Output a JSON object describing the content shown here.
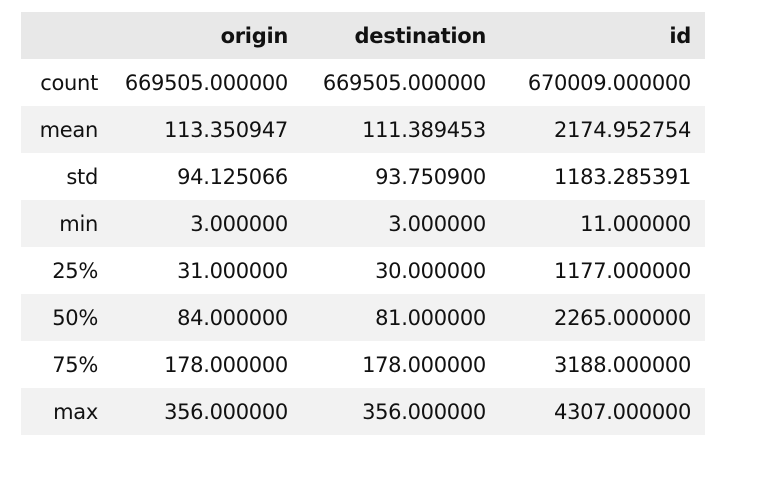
{
  "table": {
    "index_header": "",
    "columns": [
      "origin",
      "destination",
      "id"
    ],
    "rows": [
      {
        "label": "count",
        "values": [
          "669505.000000",
          "669505.000000",
          "670009.000000"
        ]
      },
      {
        "label": "mean",
        "values": [
          "113.350947",
          "111.389453",
          "2174.952754"
        ]
      },
      {
        "label": "std",
        "values": [
          "94.125066",
          "93.750900",
          "1183.285391"
        ]
      },
      {
        "label": "min",
        "values": [
          "3.000000",
          "3.000000",
          "11.000000"
        ]
      },
      {
        "label": "25%",
        "values": [
          "31.000000",
          "30.000000",
          "1177.000000"
        ]
      },
      {
        "label": "50%",
        "values": [
          "84.000000",
          "81.000000",
          "2265.000000"
        ]
      },
      {
        "label": "75%",
        "values": [
          "178.000000",
          "178.000000",
          "3188.000000"
        ]
      },
      {
        "label": "max",
        "values": [
          "356.000000",
          "356.000000",
          "4307.000000"
        ]
      }
    ]
  },
  "colors": {
    "header_bg": "#e8e8e8",
    "stripe_bg": "#f2f2f2",
    "text": "#111111"
  }
}
